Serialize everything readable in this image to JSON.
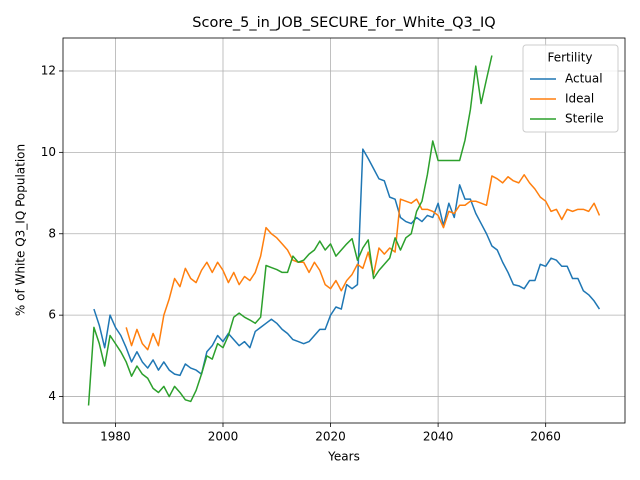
{
  "chart_data": {
    "type": "line",
    "title": "Score_5_in_JOB_SECURE_for_White_Q3_IQ",
    "xlabel": "Years",
    "ylabel": "% of White Q3_IQ Population",
    "legend_title": "Fertility",
    "legend": "upper right",
    "grid": true,
    "xlim": [
      1970.25,
      2074.75
    ],
    "xticks": [
      1980,
      2000,
      2020,
      2040,
      2060
    ],
    "ylim": [
      3.35,
      12.81
    ],
    "yticks": [
      4,
      6,
      8,
      10,
      12
    ],
    "x": [
      1975,
      1976,
      1977,
      1978,
      1979,
      1980,
      1981,
      1982,
      1983,
      1984,
      1985,
      1986,
      1987,
      1988,
      1989,
      1990,
      1991,
      1992,
      1993,
      1994,
      1995,
      1996,
      1997,
      1998,
      1999,
      2000,
      2001,
      2002,
      2003,
      2004,
      2005,
      2006,
      2007,
      2008,
      2009,
      2010,
      2011,
      2012,
      2013,
      2014,
      2015,
      2016,
      2017,
      2018,
      2019,
      2020,
      2021,
      2022,
      2023,
      2024,
      2025,
      2026,
      2027,
      2028,
      2029,
      2030,
      2031,
      2032,
      2033,
      2034,
      2035,
      2036,
      2037,
      2038,
      2039,
      2040,
      2041,
      2042,
      2043,
      2044,
      2045,
      2046,
      2047,
      2048,
      2049,
      2050,
      2051,
      2052,
      2053,
      2054,
      2055,
      2056,
      2057,
      2058,
      2059,
      2060,
      2061,
      2062,
      2063,
      2064,
      2065,
      2066,
      2067,
      2068,
      2069,
      2070
    ],
    "series": [
      {
        "name": "Actual",
        "color": "#1f77b4",
        "values": [
          null,
          6.15,
          5.75,
          5.2,
          6.0,
          5.7,
          5.5,
          5.2,
          4.85,
          5.1,
          4.85,
          4.7,
          4.9,
          4.65,
          4.85,
          4.65,
          4.55,
          4.52,
          4.8,
          4.7,
          4.65,
          4.55,
          5.1,
          5.25,
          5.5,
          5.35,
          5.55,
          5.4,
          5.25,
          5.35,
          5.2,
          5.6,
          5.7,
          5.8,
          5.9,
          5.8,
          5.65,
          5.55,
          5.4,
          5.35,
          5.3,
          5.35,
          5.5,
          5.65,
          5.65,
          6.0,
          6.2,
          6.15,
          6.75,
          6.65,
          6.75,
          10.08,
          9.85,
          9.6,
          9.35,
          9.3,
          8.9,
          8.85,
          8.4,
          8.3,
          8.25,
          8.4,
          8.3,
          8.45,
          8.4,
          8.75,
          8.2,
          8.75,
          8.4,
          9.2,
          8.85,
          8.85,
          8.5,
          8.25,
          8.0,
          7.7,
          7.6,
          7.3,
          7.05,
          6.75,
          6.72,
          6.65,
          6.85,
          6.85,
          7.25,
          7.2,
          7.4,
          7.35,
          7.2,
          7.2,
          6.9,
          6.9,
          6.6,
          6.5,
          6.35,
          6.15
        ]
      },
      {
        "name": "Ideal",
        "color": "#ff7f0e",
        "values": [
          null,
          null,
          null,
          null,
          null,
          null,
          null,
          5.7,
          5.25,
          5.65,
          5.3,
          5.15,
          5.55,
          5.25,
          6.0,
          6.4,
          6.9,
          6.7,
          7.15,
          6.9,
          6.8,
          7.1,
          7.3,
          7.05,
          7.3,
          7.1,
          6.8,
          7.05,
          6.75,
          6.95,
          6.85,
          7.05,
          7.45,
          8.15,
          8.0,
          7.9,
          7.75,
          7.6,
          7.35,
          7.3,
          7.3,
          7.05,
          7.3,
          7.1,
          6.75,
          6.65,
          6.85,
          6.6,
          6.85,
          7.0,
          7.25,
          7.15,
          7.55,
          7.0,
          7.65,
          7.5,
          7.65,
          7.55,
          8.85,
          8.8,
          8.75,
          8.85,
          8.6,
          8.6,
          8.55,
          8.45,
          8.15,
          8.55,
          8.5,
          8.7,
          8.7,
          8.8,
          8.8,
          8.75,
          8.7,
          9.42,
          9.35,
          9.25,
          9.4,
          9.3,
          9.25,
          9.45,
          9.25,
          9.1,
          8.9,
          8.8,
          8.55,
          8.6,
          8.35,
          8.6,
          8.55,
          8.6,
          8.6,
          8.55,
          8.75,
          8.45
        ]
      },
      {
        "name": "Sterile",
        "color": "#2ca02c",
        "values": [
          3.78,
          5.7,
          5.3,
          4.75,
          5.5,
          5.3,
          5.1,
          4.85,
          4.5,
          4.75,
          4.55,
          4.45,
          4.2,
          4.1,
          4.25,
          4.0,
          4.25,
          4.1,
          3.92,
          3.88,
          4.15,
          4.55,
          5.0,
          4.92,
          5.3,
          5.2,
          5.5,
          5.95,
          6.05,
          5.95,
          5.88,
          5.8,
          5.95,
          7.22,
          7.17,
          7.12,
          7.05,
          7.05,
          7.45,
          7.3,
          7.35,
          7.5,
          7.6,
          7.82,
          7.6,
          7.75,
          7.45,
          7.6,
          7.75,
          7.88,
          7.35,
          7.65,
          7.85,
          6.9,
          7.1,
          7.25,
          7.4,
          7.9,
          7.6,
          7.9,
          8.0,
          8.55,
          8.8,
          9.45,
          10.28,
          9.8,
          9.8,
          9.8,
          9.8,
          9.8,
          10.3,
          11.05,
          12.12,
          11.2,
          11.8,
          12.38,
          null,
          null,
          null,
          null,
          null,
          null,
          null,
          null,
          null,
          null,
          null,
          null,
          null,
          null,
          null,
          null,
          null,
          null,
          null,
          null
        ]
      }
    ]
  }
}
